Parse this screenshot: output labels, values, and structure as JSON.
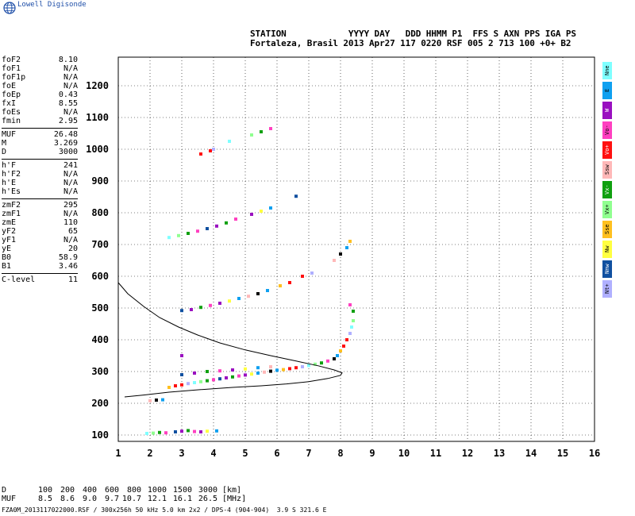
{
  "brand": "Lowell Digisonde",
  "header": {
    "line1": "STATION            YYYY DAY   DDD HHMM P1  FFS S AXN PPS IGA PS",
    "line2": "Fortaleza, Brasil 2013 Apr27 117 0220 RSF 005 2 713 100 +0+ B2"
  },
  "params": [
    {
      "name": "foF2",
      "value": "8.10"
    },
    {
      "name": "foF1",
      "value": "N/A"
    },
    {
      "name": "foF1p",
      "value": "N/A"
    },
    {
      "name": "foE",
      "value": "N/A"
    },
    {
      "name": "foEp",
      "value": "0.43"
    },
    {
      "name": "fxI",
      "value": "8.55"
    },
    {
      "name": "foEs",
      "value": "N/A"
    },
    {
      "name": "fmin",
      "value": "2.95"
    },
    {
      "sep": true
    },
    {
      "name": "MUF",
      "value": "26.48"
    },
    {
      "name": "M",
      "value": "3.269"
    },
    {
      "name": "D",
      "value": "3000"
    },
    {
      "sep": true
    },
    {
      "name": "h'F",
      "value": "241"
    },
    {
      "name": "h'F2",
      "value": "N/A"
    },
    {
      "name": "h'E",
      "value": "N/A"
    },
    {
      "name": "h'Es",
      "value": "N/A"
    },
    {
      "sep": true
    },
    {
      "name": "zmF2",
      "value": "295"
    },
    {
      "name": "zmF1",
      "value": "N/A"
    },
    {
      "name": "zmE",
      "value": "110"
    },
    {
      "name": "yF2",
      "value": "65"
    },
    {
      "name": "yF1",
      "value": "N/A"
    },
    {
      "name": "yE",
      "value": "20"
    },
    {
      "name": "B0",
      "value": "58.9"
    },
    {
      "name": "B1",
      "value": "3.46"
    },
    {
      "sep": true
    },
    {
      "name": "C-level",
      "value": "11"
    }
  ],
  "legend": [
    {
      "label": "Nne",
      "color": "#7fffff"
    },
    {
      "label": "E",
      "color": "#0fa0f0"
    },
    {
      "label": "W",
      "color": "#9a10c0"
    },
    {
      "label": "Vo-",
      "color": "#ff40c0"
    },
    {
      "label": "Vo+",
      "color": "#ff1010"
    },
    {
      "label": "Ssw",
      "color": "#ffb8b8"
    },
    {
      "label": "Vx-",
      "color": "#10a010"
    },
    {
      "label": "Vx+",
      "color": "#90ff90"
    },
    {
      "label": "Sse",
      "color": "#ffc020"
    },
    {
      "label": "Nw",
      "color": "#ffff40"
    },
    {
      "label": "Nnw",
      "color": "#1050a0"
    },
    {
      "label": "Nt+",
      "color": "#b0b0ff"
    }
  ],
  "dtable": {
    "row1_label": "D",
    "row1": [
      "100",
      "200",
      "400",
      "600",
      "800",
      "1000",
      "1500",
      "3000"
    ],
    "row1_unit": "[km]",
    "row2_label": "MUF",
    "row2": [
      "8.5",
      "8.6",
      "9.0",
      "9.7",
      "10.7",
      "12.1",
      "16.1",
      "26.5"
    ],
    "row2_unit": "[MHz]"
  },
  "footer": "FZA0M_2013117022000.RSF / 300x256h 50 kHz 5.0 km 2x2 / DPS-4 (904-904)  3.9 S 321.6 E",
  "chart_data": {
    "type": "scatter",
    "title": "",
    "xlabel": "",
    "ylabel": "",
    "xlim": [
      1,
      16
    ],
    "ylim": [
      80,
      1290
    ],
    "x_ticks": [
      1,
      2,
      3,
      4,
      5,
      6,
      7,
      8,
      9,
      10,
      11,
      12,
      13,
      14,
      15,
      16
    ],
    "y_ticks": [
      100,
      200,
      300,
      400,
      500,
      600,
      700,
      800,
      900,
      1000,
      1100,
      1200
    ],
    "grid": true,
    "legend_position": "right",
    "series": [
      {
        "type": "scatter",
        "points": [
          [
            1.9,
            105
          ],
          [
            2.1,
            106
          ],
          [
            2.3,
            108
          ],
          [
            2.5,
            107
          ],
          [
            2.8,
            110
          ],
          [
            3.0,
            112
          ],
          [
            3.2,
            114
          ],
          [
            3.4,
            111
          ],
          [
            3.6,
            110
          ],
          [
            3.8,
            112
          ],
          [
            4.1,
            113
          ],
          [
            2.0,
            208
          ],
          [
            2.2,
            210
          ],
          [
            2.4,
            211
          ],
          [
            2.6,
            250
          ],
          [
            2.8,
            255
          ],
          [
            3.0,
            258
          ],
          [
            3.2,
            262
          ],
          [
            3.4,
            265
          ],
          [
            3.6,
            268
          ],
          [
            3.8,
            271
          ],
          [
            4.0,
            274
          ],
          [
            4.2,
            277
          ],
          [
            4.4,
            280
          ],
          [
            4.6,
            283
          ],
          [
            4.8,
            286
          ],
          [
            5.0,
            289
          ],
          [
            5.2,
            292
          ],
          [
            5.4,
            295
          ],
          [
            5.6,
            298
          ],
          [
            5.8,
            301
          ],
          [
            6.0,
            304
          ],
          [
            6.2,
            306
          ],
          [
            6.4,
            309
          ],
          [
            6.6,
            312
          ],
          [
            6.8,
            315
          ],
          [
            7.0,
            319
          ],
          [
            7.2,
            323
          ],
          [
            7.4,
            327
          ],
          [
            7.6,
            333
          ],
          [
            3.0,
            290
          ],
          [
            3.4,
            295
          ],
          [
            3.8,
            300
          ],
          [
            4.2,
            302
          ],
          [
            4.6,
            305
          ],
          [
            5.0,
            308
          ],
          [
            5.4,
            312
          ],
          [
            5.8,
            315
          ],
          [
            7.8,
            340
          ],
          [
            7.9,
            350
          ],
          [
            8.0,
            365
          ],
          [
            8.1,
            380
          ],
          [
            8.2,
            400
          ],
          [
            8.3,
            420
          ],
          [
            8.35,
            440
          ],
          [
            8.4,
            460
          ],
          [
            8.4,
            490
          ],
          [
            8.3,
            510
          ],
          [
            3.0,
            492
          ],
          [
            3.3,
            495
          ],
          [
            3.6,
            502
          ],
          [
            3.9,
            508
          ],
          [
            4.2,
            515
          ],
          [
            4.5,
            522
          ],
          [
            4.8,
            530
          ],
          [
            5.1,
            537
          ],
          [
            5.4,
            545
          ],
          [
            5.7,
            555
          ],
          [
            6.1,
            570
          ],
          [
            6.4,
            580
          ],
          [
            6.8,
            600
          ],
          [
            7.1,
            610
          ],
          [
            2.6,
            722
          ],
          [
            2.9,
            728
          ],
          [
            3.2,
            735
          ],
          [
            3.5,
            742
          ],
          [
            3.8,
            750
          ],
          [
            4.1,
            758
          ],
          [
            4.4,
            768
          ],
          [
            4.7,
            780
          ],
          [
            5.2,
            795
          ],
          [
            5.5,
            805
          ],
          [
            5.8,
            815
          ],
          [
            7.8,
            650
          ],
          [
            8.0,
            670
          ],
          [
            8.2,
            690
          ],
          [
            8.3,
            710
          ],
          [
            3.6,
            985
          ],
          [
            3.9,
            995
          ],
          [
            4.0,
            1000
          ],
          [
            4.5,
            1025
          ],
          [
            5.2,
            1045
          ],
          [
            5.5,
            1055
          ],
          [
            5.8,
            1065
          ],
          [
            6.6,
            852
          ],
          [
            3.0,
            350
          ]
        ]
      },
      {
        "type": "line",
        "name": "",
        "points": [
          [
            1.0,
            580
          ],
          [
            1.3,
            545
          ],
          [
            1.8,
            505
          ],
          [
            2.3,
            470
          ],
          [
            2.9,
            440
          ],
          [
            3.5,
            415
          ],
          [
            4.2,
            390
          ],
          [
            5.0,
            368
          ],
          [
            5.8,
            350
          ],
          [
            6.6,
            333
          ],
          [
            7.3,
            318
          ],
          [
            7.8,
            305
          ],
          [
            8.05,
            296
          ],
          [
            8.0,
            288
          ],
          [
            7.6,
            278
          ],
          [
            7.0,
            268
          ],
          [
            6.3,
            261
          ],
          [
            5.5,
            255
          ],
          [
            4.6,
            250
          ],
          [
            3.6,
            243
          ],
          [
            2.6,
            235
          ],
          [
            1.8,
            226
          ],
          [
            1.2,
            220
          ]
        ]
      }
    ]
  }
}
